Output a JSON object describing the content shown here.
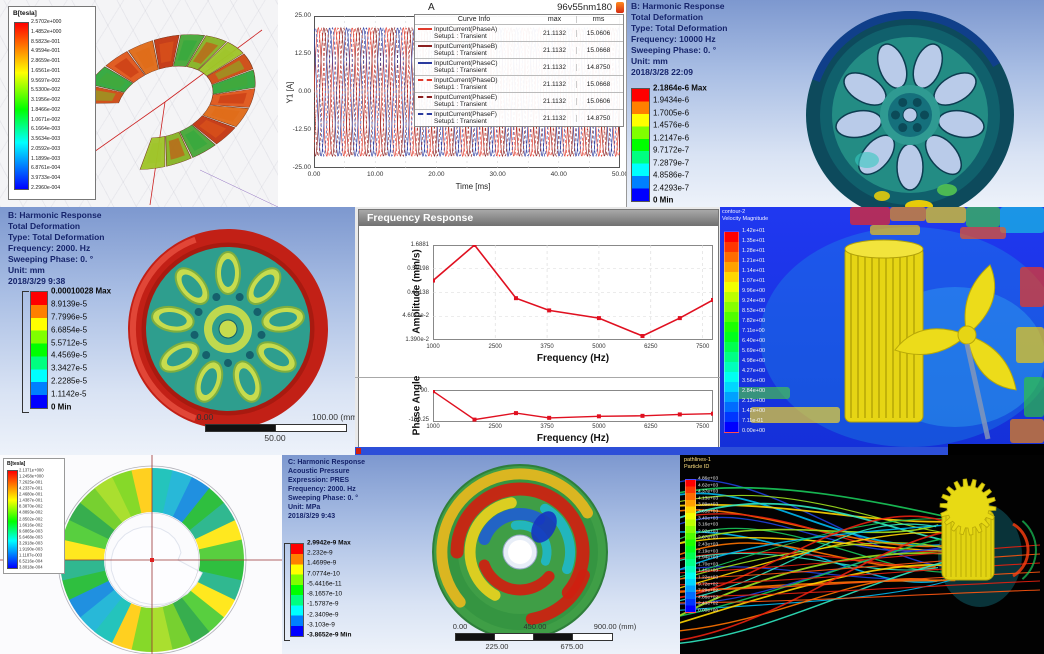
{
  "panels": {
    "a": {
      "colorbar_title": "B[tesla]",
      "colorbar_values": [
        "2.5702e+000",
        "1.4852e+000",
        "8.5823e-001",
        "4.9594e-001",
        "2.8659e-001",
        "1.6561e-001",
        "9.5697e-002",
        "5.5300e-002",
        "3.1956e-002",
        "1.8466e-002",
        "1.0671e-002",
        "6.1664e-003",
        "3.5634e-003",
        "2.0592e-003",
        "1.1899e-003",
        "6.8761e-004",
        "3.9733e-004",
        "2.2960e-004"
      ]
    },
    "b": {
      "title": "A",
      "subtitle": "96v55nm180",
      "legend_headers": [
        "Curve Info",
        "max",
        "rms"
      ],
      "legend_sub": "Setup1 : Transient"
    },
    "c": {
      "header": [
        "B: Harmonic Response",
        "Total Deformation",
        "Type: Total Deformation",
        "Frequency: 10000 Hz",
        "Sweeping Phase: 0. °",
        "Unit: mm",
        "2018/3/28 22:09"
      ],
      "colorbar_values": [
        "2.1864e-6 Max",
        "1.9434e-6",
        "1.7005e-6",
        "1.4576e-6",
        "1.2147e-6",
        "9.7172e-7",
        "7.2879e-7",
        "4.8586e-7",
        "2.4293e-7",
        "0 Min"
      ]
    },
    "d": {
      "header": [
        "B: Harmonic Response",
        "Total Deformation",
        "Type: Total Deformation",
        "Frequency: 2000. Hz",
        "Sweeping Phase: 0. °",
        "Unit: mm",
        "2018/3/29 9:38"
      ],
      "colorbar_values": [
        "0.00010028 Max",
        "8.9139e-5",
        "7.7996e-5",
        "6.6854e-5",
        "5.5712e-5",
        "4.4569e-5",
        "3.3427e-5",
        "2.2285e-5",
        "1.1142e-5",
        "0 Min"
      ],
      "ruler": {
        "start": "0.00",
        "mid": "50.00",
        "end": "100.00 (mm)"
      }
    },
    "e": {
      "window_title": "Frequency Response"
    },
    "f": {
      "colorbar_title": [
        "contour-2",
        "Velocity Magnitude"
      ],
      "colorbar_values": [
        "1.42e+01",
        "1.35e+01",
        "1.28e+01",
        "1.21e+01",
        "1.14e+01",
        "1.07e+01",
        "9.96e+00",
        "9.24e+00",
        "8.53e+00",
        "7.82e+00",
        "7.11e+00",
        "6.40e+00",
        "5.69e+00",
        "4.98e+00",
        "4.27e+00",
        "3.56e+00",
        "2.84e+00",
        "2.13e+00",
        "1.42e+00",
        "7.11e-01",
        "0.00e+00"
      ]
    },
    "g": {
      "colorbar_title": "B[tesla]",
      "colorbar_values": [
        "2.1371e+000",
        "1.2458e+000",
        "7.2625e-001",
        "4.2337e-001",
        "2.4680e-001",
        "1.4387e-001",
        "8.3870e-002",
        "4.8893e-002",
        "2.8502e-002",
        "1.6616e-002",
        "9.6865e-003",
        "5.6468e-003",
        "3.2918e-003",
        "1.9190e-003",
        "1.1187e-003",
        "6.5216e-004",
        "3.8018e-004"
      ]
    },
    "h": {
      "header": [
        "C: Harmonic Response",
        "Acoustic Pressure",
        "Expression: PRES",
        "Frequency: 2000. Hz",
        "Sweeping Phase: 0. °",
        "Unit: MPa",
        "2018/3/29 9:43"
      ],
      "colorbar_values": [
        "2.9942e-9 Max",
        "2.232e-9",
        "1.4699e-9",
        "7.0774e-10",
        "-5.4416e-11",
        "-8.1657e-10",
        "-1.5787e-9",
        "-2.3409e-9",
        "-3.103e-9",
        "-3.8652e-9 Min"
      ],
      "ruler": {
        "top_ticks": [
          "0.00",
          "450.00",
          "900.00 (mm)"
        ],
        "bottom_ticks": [
          "225.00",
          "675.00"
        ]
      }
    },
    "i": {
      "colorbar_title": [
        "pathlines-1",
        "Particle ID"
      ],
      "colorbar_values": [
        "4.86e+03",
        "4.62e+03",
        "4.37e+03",
        "4.13e+03",
        "3.89e+03",
        "3.65e+03",
        "3.40e+03",
        "3.16e+03",
        "2.92e+03",
        "2.67e+03",
        "2.43e+03",
        "2.19e+03",
        "1.94e+03",
        "1.70e+03",
        "1.46e+03",
        "1.22e+03",
        "9.72e+02",
        "7.29e+02",
        "4.86e+02",
        "2.43e+02",
        "0.00e+00"
      ]
    }
  },
  "chart_data": [
    {
      "id": "transient-currents",
      "type": "line",
      "title": "A",
      "subtitle": "96v55nm180",
      "xlabel": "Time [ms]",
      "ylabel": "Y1 [A]",
      "xlim": [
        0,
        50
      ],
      "ylim": [
        -25,
        25
      ],
      "xticks": [
        "0.00",
        "10.00",
        "20.00",
        "30.00",
        "40.00",
        "50.00"
      ],
      "yticks": [
        "25.00",
        "12.50",
        "0.00",
        "-12.50",
        "-25.00"
      ],
      "amplitude": 21.1132,
      "cycles": 18,
      "series": [
        {
          "name": "InputCurrent(PhaseA)",
          "phase_deg": 0,
          "color": "#e03a2c",
          "dash": false,
          "max": "21.1132",
          "rms": "15.0606"
        },
        {
          "name": "InputCurrent(PhaseB)",
          "phase_deg": -120,
          "color": "#8b1f1f",
          "dash": false,
          "max": "21.1132",
          "rms": "15.0668"
        },
        {
          "name": "InputCurrent(PhaseC)",
          "phase_deg": -240,
          "color": "#2b3a9e",
          "dash": false,
          "max": "21.1132",
          "rms": "14.8750"
        },
        {
          "name": "InputCurrent(PhaseD)",
          "phase_deg": -60,
          "color": "#e03a2c",
          "dash": true,
          "max": "21.1132",
          "rms": "15.0668"
        },
        {
          "name": "InputCurrent(PhaseE)",
          "phase_deg": -180,
          "color": "#8b1f1f",
          "dash": true,
          "max": "21.1132",
          "rms": "15.0606"
        },
        {
          "name": "InputCurrent(PhaseF)",
          "phase_deg": -300,
          "color": "#2b3a9e",
          "dash": true,
          "max": "21.1132",
          "rms": "14.8750"
        }
      ]
    },
    {
      "id": "frequency-response-amplitude",
      "type": "line",
      "log_y": true,
      "title": "Frequency Response",
      "xlabel": "Frequency (Hz)",
      "ylabel": "Amplitude (mm/s)",
      "xlim": [
        1000,
        7750
      ],
      "xticks": [
        "1000",
        "2500",
        "3750",
        "5000",
        "6250",
        "7500"
      ],
      "yticks": [
        "1.6881",
        "0.50198",
        "0.15138",
        "4.6011e-2",
        "1.390e-2"
      ],
      "color": "#e01020",
      "points": [
        [
          1000,
          0.28
        ],
        [
          2000,
          1.6881
        ],
        [
          3000,
          0.115
        ],
        [
          3800,
          0.062
        ],
        [
          5000,
          0.042
        ],
        [
          6050,
          0.017
        ],
        [
          6950,
          0.042
        ],
        [
          7750,
          0.105
        ]
      ]
    },
    {
      "id": "frequency-response-phase",
      "type": "line",
      "xlabel": "Frequency (Hz)",
      "ylabel": "Phase Angle",
      "xlim": [
        1000,
        7750
      ],
      "ylim": [
        -170,
        100
      ],
      "xticks": [
        "1000",
        "2500",
        "3750",
        "5000",
        "6250",
        "7500"
      ],
      "yticks": [
        "90.",
        "-150.25"
      ],
      "color": "#e01020",
      "points": [
        [
          1000,
          90
        ],
        [
          2000,
          -150
        ],
        [
          3000,
          -95
        ],
        [
          3800,
          -135
        ],
        [
          5000,
          -122
        ],
        [
          6050,
          -118
        ],
        [
          6950,
          -106
        ],
        [
          7750,
          -100
        ]
      ]
    }
  ]
}
